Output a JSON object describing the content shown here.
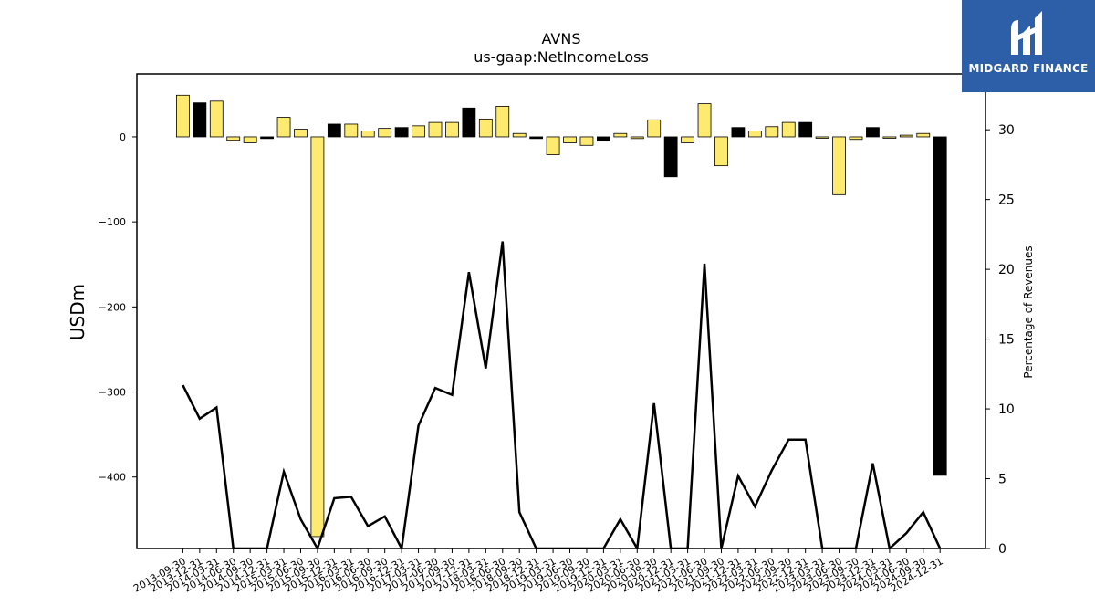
{
  "brand": {
    "name": "MIDGARD FINANCE",
    "bg_color": "#2d5fa8",
    "icon": "midgard-logo-icon"
  },
  "chart_data": {
    "type": "bar",
    "title": "AVNS",
    "subtitle": "us-gaap:NetIncomeLoss",
    "ylabel": "USDm",
    "y2label": "Percentage of Revenues",
    "ylim": [
      -484,
      74
    ],
    "y2lim": [
      0,
      34
    ],
    "yticks": [
      0,
      -100,
      -200,
      -300,
      -400
    ],
    "y2ticks": [
      0,
      5,
      10,
      15,
      20,
      25,
      30
    ],
    "colors": {
      "positive_bar": "#ffea70",
      "negative_bar": "#000000",
      "line": "#000000"
    },
    "categories": [
      "2013-09-30",
      "2013-12-31",
      "2014-03-31",
      "2014-06-30",
      "2014-09-30",
      "2014-12-31",
      "2015-03-31",
      "2015-06-30",
      "2015-09-30",
      "2015-12-31",
      "2016-03-31",
      "2016-06-30",
      "2016-09-30",
      "2016-12-31",
      "2017-03-31",
      "2017-06-30",
      "2017-09-30",
      "2017-12-31",
      "2018-03-31",
      "2018-06-30",
      "2018-09-30",
      "2018-12-31",
      "2019-03-31",
      "2019-06-30",
      "2019-09-30",
      "2019-12-31",
      "2020-03-31",
      "2020-06-30",
      "2020-09-30",
      "2020-12-31",
      "2021-03-31",
      "2021-06-30",
      "2021-09-30",
      "2021-12-31",
      "2022-03-31",
      "2022-06-30",
      "2022-09-30",
      "2022-12-31",
      "2023-03-31",
      "2023-06-30",
      "2023-09-30",
      "2023-12-31",
      "2024-03-31",
      "2024-06-30",
      "2024-09-30",
      "2024-12-31"
    ],
    "series": [
      {
        "type": "bar",
        "values": [
          49,
          40,
          42,
          -4,
          -7,
          -2,
          23,
          9,
          -470,
          15,
          15,
          7,
          10,
          11,
          13,
          17,
          17,
          34,
          21,
          36,
          4,
          -2,
          -21,
          -7,
          -10,
          -5,
          4,
          -2,
          20,
          -47,
          -7,
          39,
          -34,
          11,
          7,
          12,
          17,
          17,
          -1,
          -68,
          -3,
          11,
          0,
          2,
          4,
          -398
        ]
      },
      {
        "type": "line",
        "axis": "right",
        "values": [
          11.7,
          9.3,
          10.1,
          0,
          0,
          0,
          5.5,
          2.1,
          0,
          3.6,
          3.7,
          1.6,
          2.3,
          0,
          8.8,
          11.5,
          11.0,
          19.8,
          12.9,
          22.0,
          2.6,
          0,
          0,
          0,
          0,
          0,
          2.1,
          0,
          10.4,
          0,
          0,
          20.4,
          0,
          5.2,
          3.0,
          5.6,
          7.8,
          7.8,
          0,
          0,
          0,
          6.1,
          0,
          1.1,
          2.6,
          0
        ]
      }
    ]
  }
}
